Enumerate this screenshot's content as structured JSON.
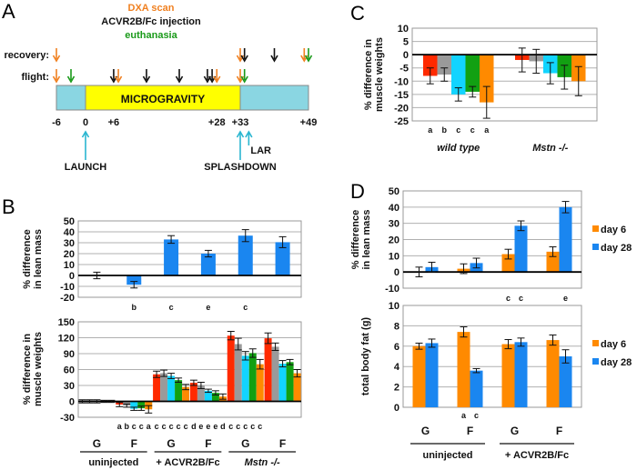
{
  "colors": {
    "red": "#ff2a00",
    "gray": "#9a9a9a",
    "cyan": "#12d4ff",
    "green": "#12a012",
    "orange": "#ff8a00",
    "blue": "#1a86f0",
    "dxa": "#f08020",
    "injection": "#111111",
    "euthanasia": "#1a9a1a",
    "ground": "#8ad6e2",
    "micrograv": "#ffff00",
    "event_arrow": "#2ab6d0"
  },
  "panel_a": {
    "letter": "A",
    "legend": {
      "dxa": "DXA scan",
      "injection": "ACVR2B/Fc injection",
      "euthanasia": "euthanasia"
    },
    "row_labels": {
      "recovery": "recovery:",
      "flight": "flight:"
    },
    "bar_label": "MICROGRAVITY",
    "axis_days": [
      "-6",
      "0",
      "+6",
      "+28",
      "+33",
      "+49"
    ],
    "recovery_arrows": [
      {
        "day": -6,
        "type": "dxa"
      },
      {
        "day": 33,
        "type": "dxa"
      },
      {
        "day": 34,
        "type": "injection"
      },
      {
        "day": 41,
        "type": "injection"
      },
      {
        "day": 48,
        "type": "dxa"
      },
      {
        "day": 49,
        "type": "euthanasia"
      }
    ],
    "flight_arrows": [
      {
        "day": -6,
        "type": "dxa"
      },
      {
        "day": -3,
        "type": "euthanasia"
      },
      {
        "day": 6,
        "type": "injection"
      },
      {
        "day": 7,
        "type": "dxa"
      },
      {
        "day": 13,
        "type": "injection"
      },
      {
        "day": 20,
        "type": "injection"
      },
      {
        "day": 26,
        "type": "injection"
      },
      {
        "day": 27,
        "type": "injection"
      },
      {
        "day": 28,
        "type": "dxa"
      },
      {
        "day": 33,
        "type": "dxa"
      },
      {
        "day": 34,
        "type": "euthanasia"
      }
    ],
    "events": [
      {
        "label": "LAUNCH",
        "day": 0
      },
      {
        "label": "SPLASHDOWN",
        "day": 33
      },
      {
        "label": "LAR",
        "day": 35
      }
    ]
  },
  "chart_data": [
    {
      "id": "B-top",
      "panel": "B",
      "type": "bar",
      "ylabel": "% difference in lean mass",
      "ylim": [
        -20,
        50
      ],
      "yticks": [
        50,
        40,
        30,
        20,
        10,
        0,
        -10,
        -20
      ],
      "grid": true,
      "categories": [
        "uninjected G",
        "uninjected F",
        "+ACVR2B/Fc G",
        "+ACVR2B/Fc F",
        "Mstn-/- G",
        "Mstn-/- F"
      ],
      "values": [
        0,
        -8.5,
        33,
        20,
        36.5,
        30.5
      ],
      "errors": [
        3,
        3,
        3.5,
        3,
        5.5,
        5
      ],
      "sig_labels": [
        "",
        "b",
        "c",
        "e",
        "c",
        ""
      ]
    },
    {
      "id": "B-bottom",
      "panel": "B",
      "type": "bar",
      "ylabel": "% difference in muscle weights",
      "ylim": [
        -30,
        150
      ],
      "yticks": [
        150,
        120,
        90,
        60,
        30,
        0,
        -30
      ],
      "grid": true,
      "series_colors": [
        "red",
        "gray",
        "cyan",
        "green",
        "orange"
      ],
      "groups": [
        {
          "values": [
            0,
            0,
            0,
            0,
            0
          ],
          "errors": [
            3,
            3,
            3,
            2,
            2
          ],
          "sig": ""
        },
        {
          "values": [
            -6,
            -8,
            -14,
            -13,
            -15
          ],
          "errors": [
            4,
            3,
            3,
            4,
            7
          ],
          "sig": "abcca"
        },
        {
          "values": [
            51,
            53,
            48,
            40,
            27
          ],
          "errors": [
            6,
            6,
            5,
            4,
            5
          ],
          "sig": "ccccc"
        },
        {
          "values": [
            35,
            30,
            20,
            16,
            9
          ],
          "errors": [
            5,
            6,
            3,
            4,
            5
          ],
          "sig": "deeed"
        },
        {
          "values": [
            124,
            108,
            86,
            91,
            70
          ],
          "errors": [
            8,
            11,
            8,
            8,
            9
          ],
          "sig": "ccccc"
        },
        {
          "values": [
            119,
            103,
            71,
            74,
            53
          ],
          "errors": [
            10,
            7,
            6,
            5,
            7
          ],
          "sig": ""
        }
      ],
      "categories": [
        "G",
        "F",
        "G",
        "F",
        "G",
        "F"
      ],
      "group_labels": [
        "uninjected",
        "+ ACVR2B/Fc",
        "Mstn -/-"
      ]
    },
    {
      "id": "C",
      "panel": "C",
      "type": "bar",
      "ylabel": "% difference in muscle weights",
      "ylim": [
        -25,
        10
      ],
      "yticks": [
        10,
        5,
        0,
        -5,
        -10,
        -15,
        -20,
        -25
      ],
      "grid": true,
      "series_colors": [
        "red",
        "gray",
        "cyan",
        "green",
        "orange"
      ],
      "groups": [
        {
          "label": "wild type",
          "values": [
            -8,
            -7.5,
            -15,
            -14,
            -18
          ],
          "errors": [
            3,
            2.5,
            2.5,
            2,
            6
          ],
          "sig": "abcca"
        },
        {
          "label": "Mstn -/-",
          "values": [
            -2,
            -2.5,
            -7,
            -8.5,
            -10
          ],
          "errors": [
            4.5,
            4.5,
            4,
            4.5,
            5.5
          ],
          "sig": ""
        }
      ]
    },
    {
      "id": "D-top",
      "panel": "D",
      "type": "bar",
      "ylabel": "% difference in lean mass",
      "ylim": [
        -10,
        50
      ],
      "yticks": [
        50,
        40,
        30,
        20,
        10,
        0,
        -10
      ],
      "grid": true,
      "legend": [
        "day 6",
        "day 28"
      ],
      "legend_position": "right",
      "series": [
        {
          "name": "day 6",
          "color": "orange",
          "values": [
            0,
            2,
            11,
            12.5
          ],
          "errors": [
            3,
            3,
            3,
            3
          ]
        },
        {
          "name": "day 28",
          "color": "blue",
          "values": [
            3,
            5.5,
            28.5,
            40
          ],
          "errors": [
            3,
            3,
            3,
            3.5
          ]
        }
      ],
      "sig_labels": [
        [
          "",
          ""
        ],
        [
          "",
          ""
        ],
        [
          "c",
          "c"
        ],
        [
          "",
          "e"
        ]
      ]
    },
    {
      "id": "D-bottom",
      "panel": "D",
      "type": "bar",
      "ylabel": "total body fat (g)",
      "ylim": [
        0,
        10
      ],
      "yticks": [
        10,
        8,
        6,
        4,
        2,
        0
      ],
      "grid": true,
      "legend": [
        "day 6",
        "day 28"
      ],
      "legend_position": "right",
      "series": [
        {
          "name": "day 6",
          "color": "orange",
          "values": [
            6.0,
            7.4,
            6.2,
            6.6
          ],
          "errors": [
            0.3,
            0.5,
            0.45,
            0.5
          ]
        },
        {
          "name": "day 28",
          "color": "blue",
          "values": [
            6.3,
            3.6,
            6.4,
            5.0
          ],
          "errors": [
            0.4,
            0.2,
            0.4,
            0.65
          ]
        }
      ],
      "sig_labels": [
        [
          "",
          ""
        ],
        [
          "a",
          "c"
        ],
        [
          "",
          ""
        ],
        [
          "",
          ""
        ]
      ],
      "categories": [
        "G",
        "F",
        "G",
        "F"
      ],
      "group_labels": [
        "uninjected",
        "+ ACVR2B/Fc"
      ]
    }
  ],
  "panel_b": {
    "letter": "B"
  },
  "panel_c": {
    "letter": "C"
  },
  "panel_d": {
    "letter": "D"
  }
}
